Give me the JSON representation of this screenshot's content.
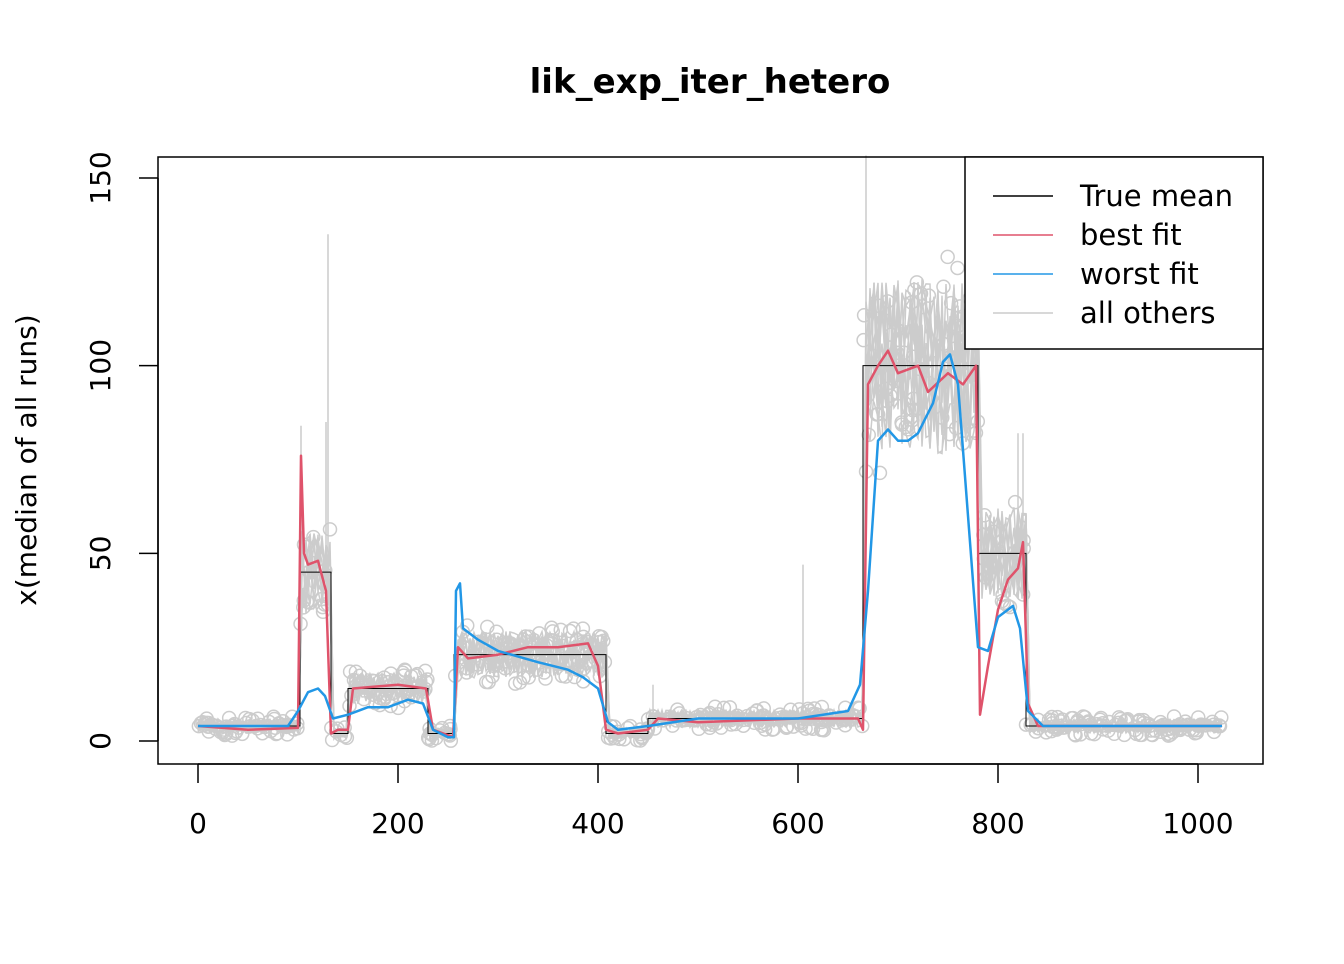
{
  "chart_data": {
    "type": "line",
    "title": "lik_exp_iter_hetero",
    "xlabel": "",
    "ylabel": "x(median of all runs)",
    "xlim": [
      -40,
      1065
    ],
    "ylim": [
      -6,
      156
    ],
    "xticks": [
      0,
      200,
      400,
      600,
      800,
      1000
    ],
    "yticks": [
      0,
      50,
      100,
      150
    ],
    "grid": false,
    "legend": {
      "placement": "top-right",
      "entries": [
        {
          "label": "True mean",
          "color": "#000000"
        },
        {
          "label": "best fit",
          "color": "#DF536B"
        },
        {
          "label": "worst fit",
          "color": "#2297E6"
        },
        {
          "label": "all others",
          "color": "#CCCCCC"
        }
      ]
    },
    "true_mean": {
      "name": "True mean",
      "segments": [
        {
          "x": [
            0,
            102
          ],
          "y": 4
        },
        {
          "x": [
            102,
            133
          ],
          "y": 45
        },
        {
          "x": [
            133,
            150
          ],
          "y": 2
        },
        {
          "x": [
            150,
            230
          ],
          "y": 14
        },
        {
          "x": [
            230,
            256
          ],
          "y": 2
        },
        {
          "x": [
            256,
            408
          ],
          "y": 23
        },
        {
          "x": [
            408,
            450
          ],
          "y": 2
        },
        {
          "x": [
            450,
            665
          ],
          "y": 6
        },
        {
          "x": [
            665,
            780
          ],
          "y": 100
        },
        {
          "x": [
            780,
            828
          ],
          "y": 50
        },
        {
          "x": [
            828,
            1024
          ],
          "y": 4
        }
      ]
    },
    "series": [
      {
        "name": "best fit",
        "color": "#DF536B",
        "x": [
          0,
          50,
          100,
          103,
          106,
          110,
          120,
          128,
          133,
          140,
          150,
          155,
          200,
          228,
          235,
          255,
          260,
          270,
          300,
          330,
          360,
          390,
          400,
          408,
          420,
          450,
          460,
          500,
          600,
          660,
          665,
          670,
          680,
          690,
          700,
          720,
          730,
          750,
          765,
          778,
          782,
          790,
          800,
          810,
          820,
          825,
          830,
          840,
          1024
        ],
        "y": [
          4,
          3,
          3.5,
          76,
          50,
          47,
          48,
          40,
          2,
          3,
          3,
          14,
          15,
          14,
          3,
          1,
          25,
          22,
          23,
          25,
          25,
          26,
          20,
          3,
          2,
          3,
          6,
          5,
          6,
          6,
          3,
          95,
          100,
          104,
          98,
          100,
          93,
          98,
          95,
          100,
          7,
          20,
          35,
          43,
          46,
          53,
          10,
          4,
          4
        ]
      },
      {
        "name": "worst fit",
        "color": "#2297E6",
        "x": [
          0,
          60,
          90,
          100,
          110,
          120,
          127,
          135,
          150,
          170,
          190,
          210,
          225,
          235,
          250,
          256,
          258,
          262,
          265,
          280,
          300,
          340,
          370,
          385,
          400,
          410,
          420,
          450,
          500,
          600,
          650,
          662,
          670,
          680,
          690,
          700,
          710,
          720,
          735,
          745,
          752,
          760,
          770,
          780,
          790,
          800,
          815,
          822,
          830,
          845,
          1024
        ],
        "y": [
          4,
          4,
          4,
          8,
          13,
          14,
          12,
          6,
          7,
          9,
          9,
          11,
          10,
          3,
          1,
          1,
          40,
          42,
          30,
          27,
          24,
          21,
          19,
          17,
          14,
          5,
          3,
          4,
          6,
          6,
          8,
          15,
          40,
          80,
          83,
          80,
          80,
          82,
          90,
          101,
          103,
          95,
          60,
          25,
          24,
          33,
          36,
          30,
          8,
          4,
          4
        ]
      }
    ]
  }
}
